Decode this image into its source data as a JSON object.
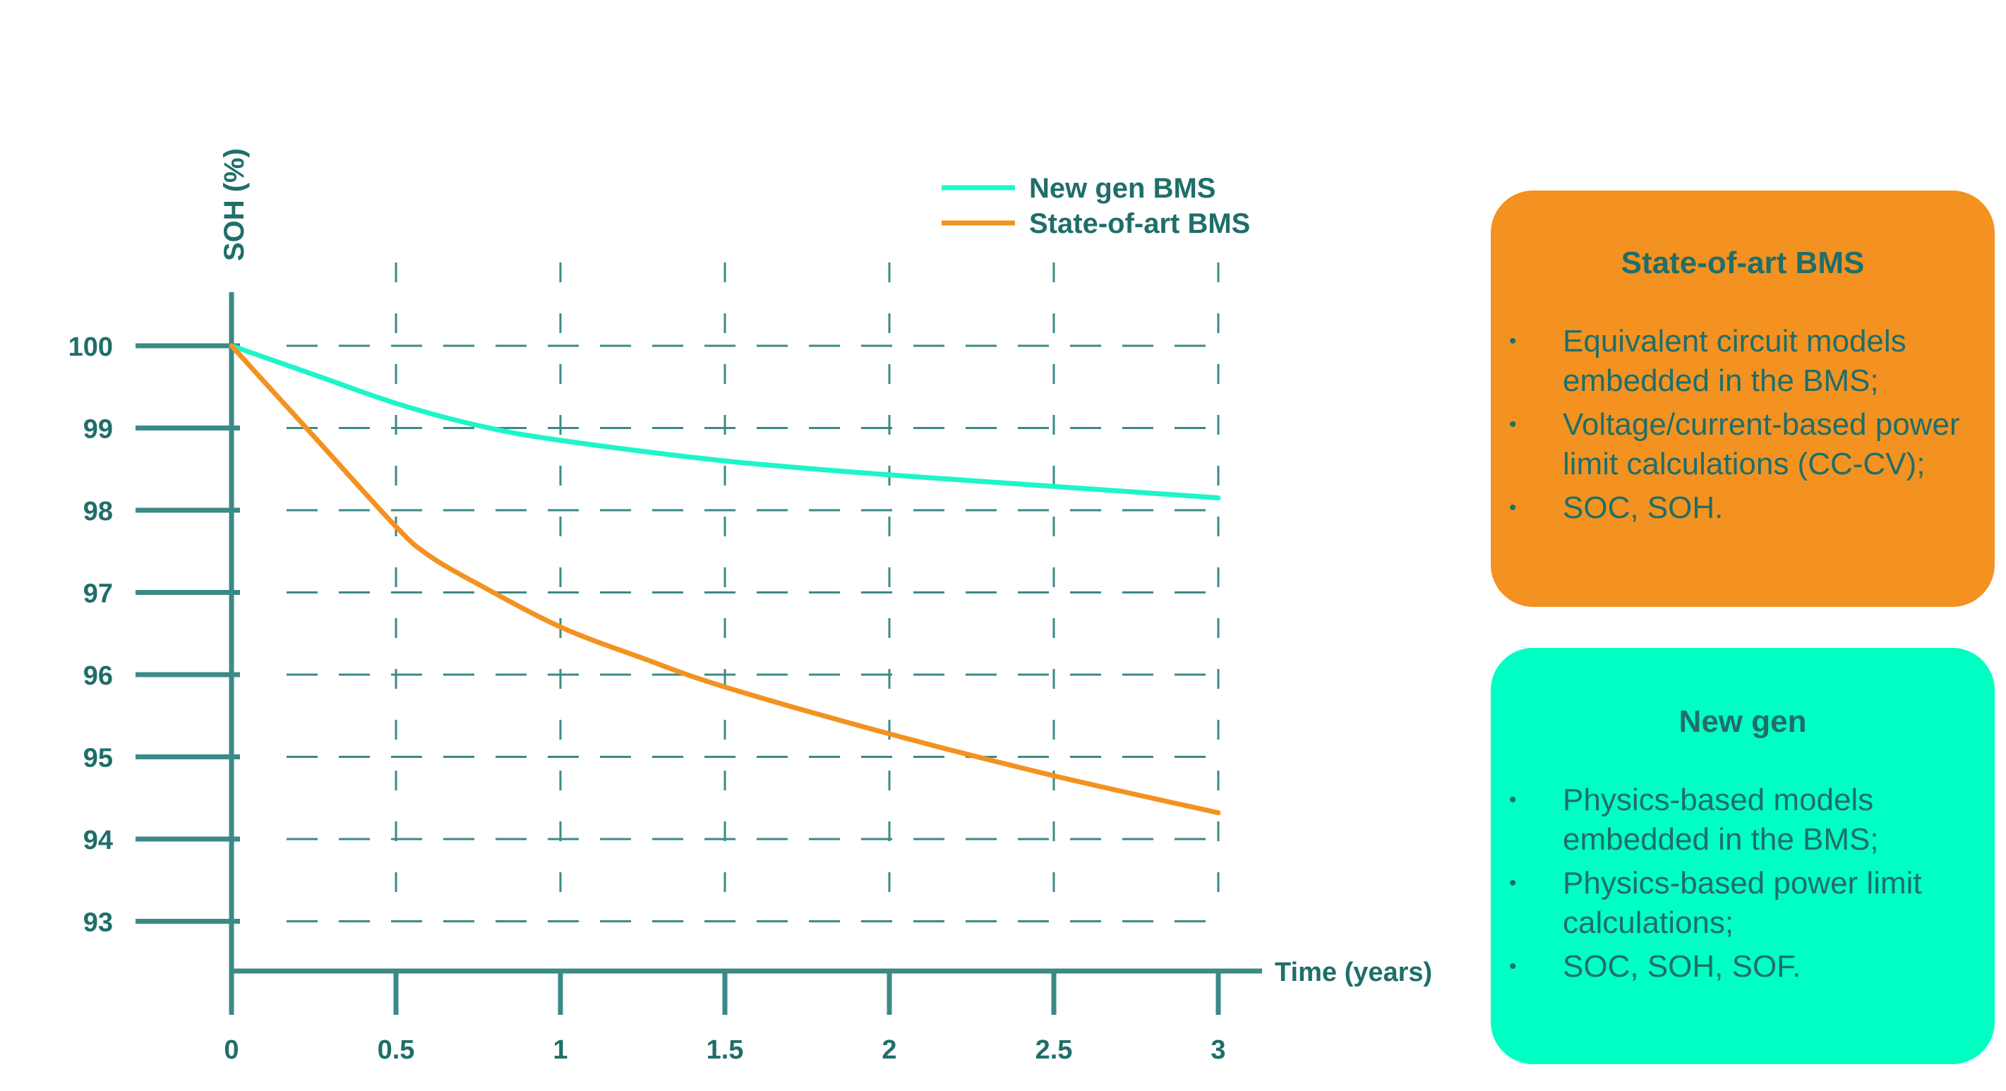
{
  "chart_data": {
    "type": "line",
    "title": "",
    "xlabel": "Time (years)",
    "ylabel": "SOH (%)",
    "xlim": [
      0,
      3.2
    ],
    "ylim": [
      92.2,
      100.6
    ],
    "x_ticks": [
      "0",
      "0.5",
      "1",
      "1.5",
      "2",
      "2.5",
      "3"
    ],
    "y_ticks": [
      "100",
      "99",
      "98",
      "97",
      "96",
      "95",
      "94",
      "93"
    ],
    "grid": true,
    "legend_position": "top-right",
    "series": [
      {
        "name": "New gen BMS",
        "color": "#1ef5c8",
        "x": [
          0,
          0.25,
          0.5,
          0.75,
          1,
          1.5,
          2,
          2.5,
          3
        ],
        "y": [
          100,
          99.65,
          99.3,
          99.03,
          98.85,
          98.6,
          98.43,
          98.29,
          98.15
        ]
      },
      {
        "name": "State-of-art BMS",
        "color": "#f39220",
        "x": [
          0,
          0.25,
          0.5,
          0.6,
          0.75,
          1,
          1.25,
          1.5,
          2,
          2.5,
          3
        ],
        "y": [
          100,
          98.9,
          97.8,
          97.45,
          97.1,
          96.58,
          96.2,
          95.85,
          95.28,
          94.77,
          94.32
        ]
      }
    ]
  },
  "colors": {
    "axis": "#3a8a85",
    "text": "#1f6e6a",
    "new_gen": "#1ef5c8",
    "state_of_art": "#f39220"
  },
  "panels": {
    "state_of_art": {
      "title": "State-of-art BMS",
      "bullet": "•",
      "items": [
        "Equivalent circuit models embedded in the BMS;",
        "Voltage/current-based power limit calculations (CC-CV);",
        "SOC, SOH."
      ],
      "color": "#f39220"
    },
    "new_gen": {
      "title": "New gen",
      "bullet": "•",
      "items": [
        "Physics-based models embedded in the BMS;",
        "Physics-based power limit calculations;",
        "SOC, SOH, SOF."
      ],
      "color": "#00ffc2"
    }
  }
}
